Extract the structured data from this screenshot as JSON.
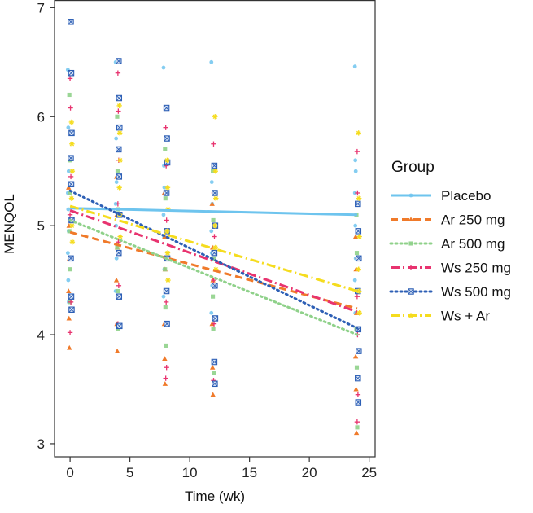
{
  "chart_data": {
    "type": "scatter",
    "xlabel": "Time (wk)",
    "ylabel": "MENQOL",
    "xlim": [
      -1.3,
      25.5
    ],
    "ylim": [
      2.88,
      7.07
    ],
    "x_ticks": [
      0,
      5,
      10,
      15,
      20,
      25
    ],
    "y_ticks": [
      3,
      4,
      5,
      6,
      7
    ],
    "grid": false,
    "legend_title": "Group",
    "legend_position": "right",
    "time_points": [
      0,
      4,
      8,
      12,
      24
    ],
    "series": [
      {
        "name": "Placebo",
        "color": "#6ec4ee",
        "line": "solid",
        "marker": "dot",
        "trend": [
          [
            0,
            5.16
          ],
          [
            24,
            5.1
          ]
        ],
        "points": {
          "0": [
            6.43,
            5.9,
            5.5,
            5.3,
            5.15,
            4.95,
            4.75,
            4.5,
            4.3
          ],
          "4": [
            6.5,
            5.8,
            5.4,
            5.2,
            5.0,
            4.7,
            4.4
          ],
          "8": [
            6.45,
            5.55,
            5.35,
            5.1,
            4.9,
            4.6,
            4.35
          ],
          "12": [
            6.5,
            5.4,
            5.2,
            4.95,
            4.75,
            4.45,
            4.2
          ],
          "24": [
            6.46,
            5.6,
            5.5,
            5.3,
            5.0,
            4.7,
            4.5,
            4.2
          ]
        }
      },
      {
        "name": "Ar 250 mg",
        "color": "#f07a2a",
        "line": "dashed",
        "marker": "triangle",
        "trend": [
          [
            0,
            4.94
          ],
          [
            24,
            4.24
          ]
        ],
        "points": {
          "0": [
            5.35,
            5.0,
            4.7,
            4.4,
            4.15,
            3.88
          ],
          "4": [
            5.45,
            5.1,
            4.8,
            4.5,
            4.1,
            3.85
          ],
          "8": [
            5.3,
            4.9,
            4.6,
            4.1,
            3.78,
            3.55
          ],
          "12": [
            5.2,
            4.8,
            4.5,
            4.1,
            3.7,
            3.45
          ],
          "24": [
            4.9,
            4.6,
            4.2,
            3.8,
            3.5,
            3.1
          ]
        }
      },
      {
        "name": "Ar 500 mg",
        "color": "#8fd18a",
        "line": "dotted",
        "marker": "square",
        "trend": [
          [
            0,
            5.05
          ],
          [
            24,
            4.0
          ]
        ],
        "points": {
          "0": [
            6.2,
            5.6,
            5.3,
            4.95,
            4.6,
            4.3
          ],
          "4": [
            6.0,
            5.5,
            5.15,
            4.8,
            4.4,
            4.05
          ],
          "8": [
            5.7,
            5.25,
            4.95,
            4.6,
            4.25,
            3.9
          ],
          "12": [
            5.5,
            5.05,
            4.7,
            4.35,
            4.05,
            3.65
          ],
          "24": [
            5.1,
            4.75,
            4.4,
            4.05,
            3.7,
            3.15
          ]
        }
      },
      {
        "name": "Ws 250 mg",
        "color": "#e8336f",
        "line": "dashdot",
        "marker": "plus",
        "trend": [
          [
            0,
            5.14
          ],
          [
            24,
            4.21
          ]
        ],
        "points": {
          "0": [
            6.35,
            6.08,
            5.45,
            5.1,
            4.7,
            4.3,
            4.02
          ],
          "4": [
            6.4,
            6.05,
            5.6,
            5.2,
            4.85,
            4.45,
            4.1
          ],
          "8": [
            5.9,
            5.55,
            5.05,
            4.7,
            4.3,
            3.7,
            3.6
          ],
          "12": [
            5.75,
            5.3,
            4.9,
            4.5,
            4.1,
            3.75,
            3.58
          ],
          "24": [
            5.68,
            5.3,
            4.7,
            4.35,
            4.0,
            3.45,
            3.2
          ]
        }
      },
      {
        "name": "Ws 500 mg",
        "color": "#2d5fb5",
        "line": "dotted",
        "marker": "boxx",
        "trend": [
          [
            0,
            5.32
          ],
          [
            24,
            4.06
          ]
        ],
        "points": {
          "0": [
            6.87,
            6.4,
            5.85,
            5.62,
            5.38,
            5.05,
            4.7,
            4.35,
            4.23
          ],
          "4": [
            6.51,
            6.17,
            5.9,
            5.7,
            5.45,
            5.1,
            4.75,
            4.35,
            4.08
          ],
          "8": [
            6.08,
            5.8,
            5.58,
            5.3,
            4.95,
            4.7,
            4.4,
            4.1
          ],
          "12": [
            5.55,
            5.3,
            5.0,
            4.75,
            4.45,
            4.15,
            3.75,
            3.55
          ],
          "24": [
            5.2,
            4.95,
            4.7,
            4.4,
            4.05,
            3.85,
            3.6,
            3.38
          ]
        }
      },
      {
        "name": "Ws + Ar",
        "color": "#f5dc1e",
        "line": "dashdot",
        "marker": "star",
        "trend": [
          [
            0,
            5.18
          ],
          [
            24,
            4.4
          ]
        ],
        "points": {
          "0": [
            5.95,
            5.75,
            5.5,
            5.25,
            5.0,
            4.85
          ],
          "4": [
            6.1,
            5.85,
            5.6,
            5.35,
            5.1,
            4.9
          ],
          "8": [
            5.6,
            5.35,
            5.15,
            4.95,
            4.75,
            4.5
          ],
          "12": [
            6.0,
            5.5,
            5.25,
            5.0,
            4.8,
            4.6
          ],
          "24": [
            5.85,
            5.25,
            4.9,
            4.6,
            4.4,
            4.2
          ]
        }
      }
    ]
  }
}
